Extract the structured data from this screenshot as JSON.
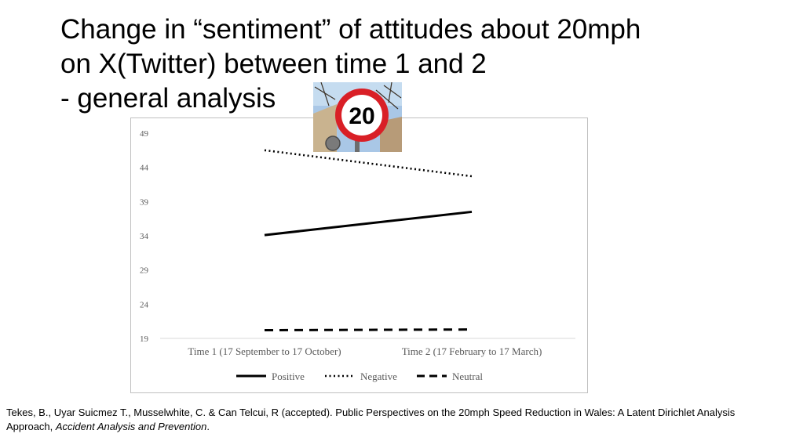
{
  "slide": {
    "title_lines": [
      "Change in “sentiment” of attitudes about 20mph",
      "on X(Twitter) between time 1 and 2",
      "- general analysis"
    ],
    "sign_text": "20"
  },
  "citation": {
    "text": "Tekes, B., Uyar Suicmez T., Musselwhite, C. & Can Telcui, R (accepted). Public Perspectives on the 20mph Speed Reduction in Wales:  A Latent Dirichlet Analysis Approach, ",
    "journal": "Accident Analysis and Prevention",
    "end": "."
  },
  "chart_data": {
    "type": "line",
    "categories": [
      "Time 1 (17 September to 17 October)",
      "Time 2 (17 February to 17 March)"
    ],
    "series": [
      {
        "name": "Positive",
        "values": [
          34.1,
          37.5
        ],
        "style": "solid"
      },
      {
        "name": "Negative",
        "values": [
          46.5,
          42.7
        ],
        "style": "dotted"
      },
      {
        "name": "Neutral",
        "values": [
          20.2,
          20.3
        ],
        "style": "dashed"
      }
    ],
    "yticks": [
      19,
      24,
      29,
      34,
      39,
      44,
      49
    ],
    "ylim": [
      19,
      49
    ],
    "grid": false,
    "legend_position": "bottom",
    "line_color": "#000000"
  }
}
